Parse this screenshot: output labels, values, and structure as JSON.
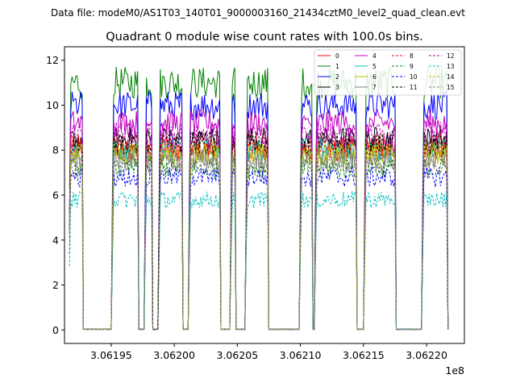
{
  "figure": {
    "suptitle": "Data file: modeM0/AS1T03_140T01_9000003160_21434cztM0_level2_quad_clean.evt"
  },
  "chart_data": {
    "type": "line",
    "title": "Quadrant 0 module wise count rates with 100.0s bins.",
    "xlabel": "",
    "ylabel": "",
    "x_offset_label": "1e8",
    "xlim": [
      3.061913,
      3.06223
    ],
    "ylim": [
      -0.6,
      12.6
    ],
    "x_ticks": [
      3.06195,
      3.062,
      3.06205,
      3.0621,
      3.06215,
      3.0622
    ],
    "x_tick_labels": [
      "3.06195",
      "3.06200",
      "3.06205",
      "3.06210",
      "3.06215",
      "3.06220"
    ],
    "y_ticks": [
      0,
      2,
      4,
      6,
      8,
      10,
      12
    ],
    "y_tick_labels": [
      "0",
      "2",
      "4",
      "6",
      "8",
      "10",
      "12"
    ],
    "grid": false,
    "legend_location": "top-right",
    "legend_columns": 4,
    "on_intervals": [
      [
        3.061917,
        3.061928
      ],
      [
        3.061951,
        3.061972
      ],
      [
        3.061977,
        3.061983
      ],
      [
        3.061988,
        3.062007
      ],
      [
        3.062012,
        3.062037
      ],
      [
        3.062045,
        3.062049
      ],
      [
        3.062057,
        3.062075
      ],
      [
        3.0621,
        3.06211
      ],
      [
        3.062112,
        3.062145
      ],
      [
        3.062151,
        3.062176
      ],
      [
        3.062197,
        3.062217
      ]
    ],
    "series": [
      {
        "name": "0",
        "color": "#ff0000",
        "dash": "solid",
        "base": 8.0
      },
      {
        "name": "1",
        "color": "#008000",
        "dash": "solid",
        "base": 11.0
      },
      {
        "name": "2",
        "color": "#0000ff",
        "dash": "solid",
        "base": 10.0
      },
      {
        "name": "3",
        "color": "#000000",
        "dash": "solid",
        "base": 8.5
      },
      {
        "name": "4",
        "color": "#bf00bf",
        "dash": "solid",
        "base": 9.2
      },
      {
        "name": "5",
        "color": "#00bfbf",
        "dash": "solid",
        "base": 8.0
      },
      {
        "name": "6",
        "color": "#bfbf00",
        "dash": "solid",
        "base": 7.8
      },
      {
        "name": "7",
        "color": "#808080",
        "dash": "solid",
        "base": 7.6
      },
      {
        "name": "8",
        "color": "#ff0000",
        "dash": "dashed",
        "base": 8.2
      },
      {
        "name": "9",
        "color": "#008000",
        "dash": "dashed",
        "base": 7.2
      },
      {
        "name": "10",
        "color": "#0000ff",
        "dash": "dashed",
        "base": 6.8
      },
      {
        "name": "11",
        "color": "#000000",
        "dash": "dashed",
        "base": 8.3
      },
      {
        "name": "12",
        "color": "#bf00bf",
        "dash": "dashed",
        "base": 8.7
      },
      {
        "name": "13",
        "color": "#00bfbf",
        "dash": "dashed",
        "base": 5.8
      },
      {
        "name": "14",
        "color": "#bfbf00",
        "dash": "dashed",
        "base": 7.9
      },
      {
        "name": "15",
        "color": "#808080",
        "dash": "dashed",
        "base": 7.4
      }
    ]
  }
}
